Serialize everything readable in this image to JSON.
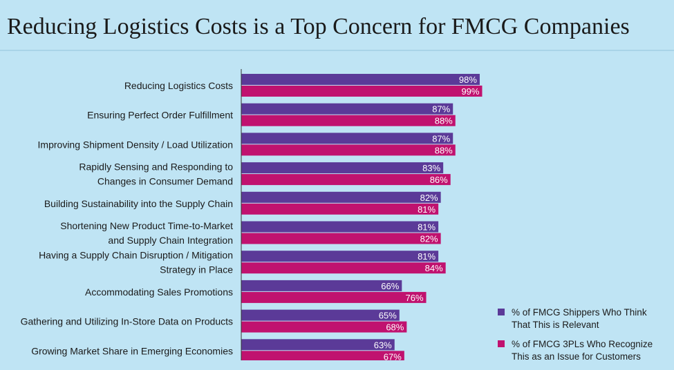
{
  "title": "Reducing Logistics Costs is a Top Concern for FMCG Companies",
  "colors": {
    "background": "#bfe4f4",
    "series1": "#5b3a98",
    "series2": "#c0126f"
  },
  "chart_data": {
    "type": "bar",
    "orientation": "horizontal",
    "title": "Reducing Logistics Costs is a Top Concern for FMCG Companies",
    "categories": [
      [
        "Reducing Logistics Costs"
      ],
      [
        "Ensuring Perfect Order Fulfillment"
      ],
      [
        "Improving Shipment Density / Load Utilization"
      ],
      [
        "Rapidly Sensing and Responding to",
        "Changes in Consumer Demand"
      ],
      [
        "Building Sustainability into the Supply Chain"
      ],
      [
        "Shortening New Product Time-to-Market",
        "and Supply Chain Integration"
      ],
      [
        "Having a Supply Chain Disruption / Mitigation",
        "Strategy in Place"
      ],
      [
        "Accommodating Sales Promotions"
      ],
      [
        "Gathering and Utilizing In-Store Data on Products"
      ],
      [
        "Growing Market Share in Emerging Economies"
      ]
    ],
    "series": [
      {
        "name": "% of FMCG Shippers Who Think That This is Relevant",
        "values": [
          98,
          87,
          87,
          83,
          82,
          81,
          81,
          66,
          65,
          63
        ]
      },
      {
        "name": "% of FMCG 3PLs Who Recognize This as an Issue for Customers",
        "values": [
          99,
          88,
          88,
          86,
          81,
          82,
          84,
          76,
          68,
          67
        ]
      }
    ],
    "value_suffix": "%",
    "xlim": [
      0,
      100
    ],
    "grid": false,
    "legend_position": "bottom-right"
  },
  "legend": {
    "items": [
      {
        "lines": [
          "% of FMCG Shippers Who Think",
          "That This is Relevant"
        ]
      },
      {
        "lines": [
          "% of FMCG 3PLs Who Recognize",
          "This as an Issue for Customers"
        ]
      }
    ]
  }
}
